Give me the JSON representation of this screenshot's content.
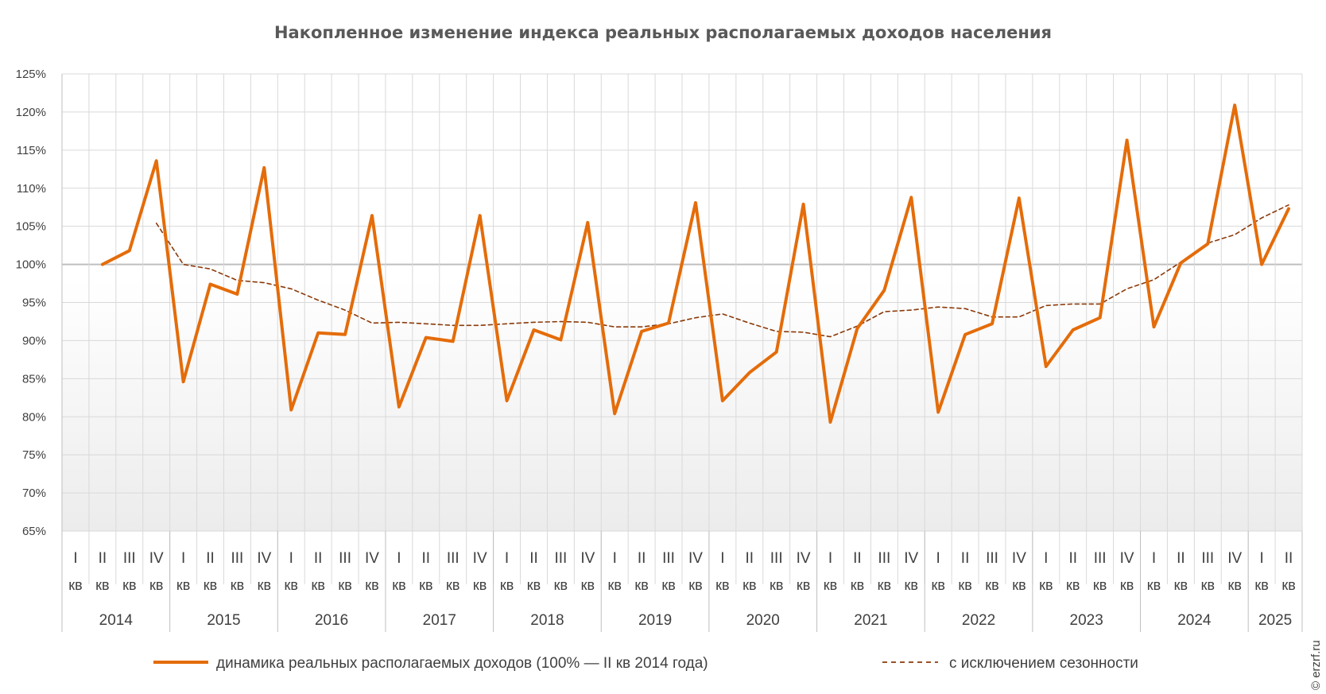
{
  "chart_data": {
    "type": "line",
    "title": "Накопленное изменение индекса реальных располагаемых доходов населения",
    "y_ticks": [
      "125%",
      "120%",
      "115%",
      "110%",
      "105%",
      "100%",
      "95%",
      "90%",
      "85%",
      "80%",
      "75%",
      "70%",
      "65%"
    ],
    "ylim": [
      65,
      125
    ],
    "grid": true,
    "quarter_labels": [
      "I",
      "II",
      "III",
      "IV",
      "I",
      "II",
      "III",
      "IV",
      "I",
      "II",
      "III",
      "IV",
      "I",
      "II",
      "III",
      "IV",
      "I",
      "II",
      "III",
      "IV",
      "I",
      "II",
      "III",
      "IV",
      "I",
      "II",
      "III",
      "IV",
      "I",
      "II",
      "III",
      "IV",
      "I",
      "II",
      "III",
      "IV",
      "I",
      "II",
      "III",
      "IV",
      "I",
      "II",
      "III",
      "IV",
      "I",
      "II"
    ],
    "kv_label": "кв",
    "years": [
      {
        "label": "2014",
        "quarters": 4
      },
      {
        "label": "2015",
        "quarters": 4
      },
      {
        "label": "2016",
        "quarters": 4
      },
      {
        "label": "2017",
        "quarters": 4
      },
      {
        "label": "2018",
        "quarters": 4
      },
      {
        "label": "2019",
        "quarters": 4
      },
      {
        "label": "2020",
        "quarters": 4
      },
      {
        "label": "2021",
        "quarters": 4
      },
      {
        "label": "2022",
        "quarters": 4
      },
      {
        "label": "2023",
        "quarters": 4
      },
      {
        "label": "2024",
        "quarters": 4
      },
      {
        "label": "2025",
        "quarters": 2
      }
    ],
    "series": [
      {
        "name": "динамика реальных располагаемых доходов (100% — II кв 2014 года)",
        "color": "#e46c0a",
        "style": "solid",
        "values": [
          null,
          100.0,
          101.8,
          113.6,
          84.6,
          97.4,
          96.1,
          112.7,
          80.9,
          91.0,
          90.8,
          106.4,
          81.3,
          90.4,
          89.9,
          106.4,
          82.1,
          91.4,
          90.1,
          105.5,
          80.4,
          91.2,
          92.3,
          108.1,
          82.1,
          85.8,
          88.5,
          107.9,
          79.3,
          91.6,
          96.6,
          108.8,
          80.6,
          90.8,
          92.2,
          108.7,
          86.6,
          91.4,
          93.0,
          116.3,
          91.8,
          100.2,
          102.7,
          120.9,
          100.0,
          107.3
        ]
      },
      {
        "name": "с исключением сезонности",
        "color": "#8b3a0a",
        "style": "dashed",
        "values": [
          null,
          null,
          null,
          105.4,
          100.0,
          99.4,
          97.9,
          97.6,
          96.8,
          95.3,
          94.0,
          92.3,
          92.4,
          92.2,
          92.0,
          92.0,
          92.2,
          92.4,
          92.5,
          92.4,
          91.8,
          91.8,
          92.2,
          93.0,
          93.5,
          92.3,
          91.2,
          91.1,
          90.5,
          91.9,
          93.8,
          94.0,
          94.4,
          94.2,
          93.1,
          93.1,
          94.6,
          94.8,
          94.8,
          96.8,
          98.0,
          100.3,
          102.8,
          103.9,
          106.1,
          107.8
        ]
      }
    ]
  },
  "watermark": "© erzrf.ru"
}
